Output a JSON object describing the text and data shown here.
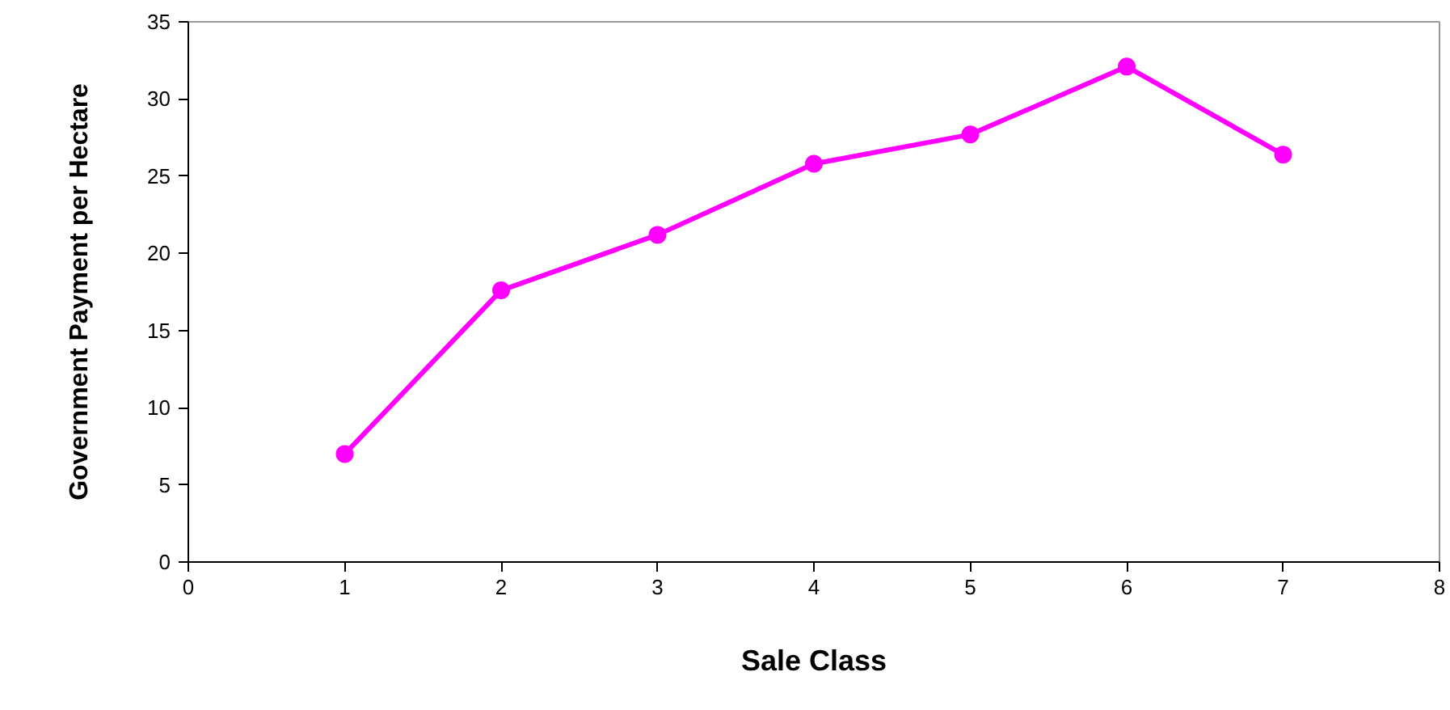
{
  "chart_data": {
    "type": "line",
    "xlabel": "Sale Class",
    "ylabel": "Government Payment per Hectare",
    "x": [
      1,
      2,
      3,
      4,
      5,
      6,
      7
    ],
    "series": [
      {
        "color": "#ff00ff",
        "values": [
          7.0,
          17.6,
          21.2,
          25.8,
          27.7,
          32.1,
          26.4
        ]
      }
    ],
    "xlim": [
      0,
      8
    ],
    "xticks": [
      0,
      1,
      2,
      3,
      4,
      5,
      6,
      7,
      8
    ],
    "ylim": [
      0,
      35
    ],
    "yticks": [
      0,
      5,
      10,
      15,
      20,
      25,
      30,
      35
    ],
    "marker": "circle",
    "line_style": "solid",
    "grid": false
  }
}
